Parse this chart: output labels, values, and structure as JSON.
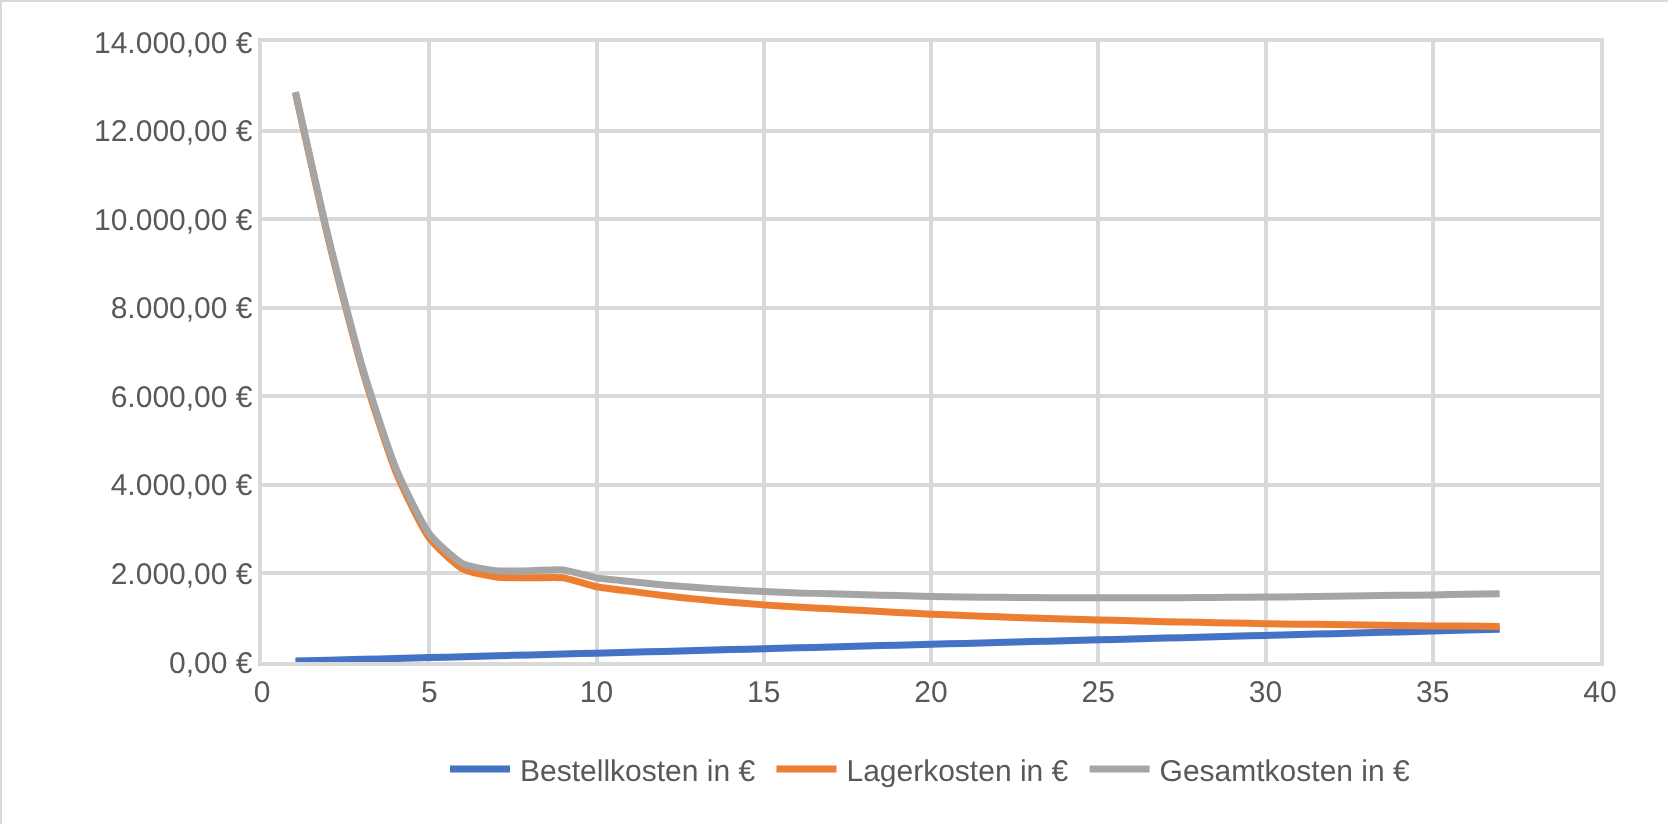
{
  "chart_data": {
    "type": "line",
    "x": [
      1,
      2,
      3,
      4,
      5,
      6,
      7,
      8,
      9,
      10,
      11,
      12,
      13,
      14,
      15,
      16,
      17,
      18,
      19,
      20,
      21,
      22,
      23,
      24,
      25,
      26,
      27,
      28,
      29,
      30,
      31,
      32,
      33,
      34,
      35,
      36,
      37
    ],
    "series": [
      {
        "name": "Bestellkosten in €",
        "color": "#4472c4",
        "values": [
          20,
          40,
          60,
          80,
          100,
          120,
          140,
          160,
          180,
          200,
          220,
          240,
          260,
          280,
          300,
          320,
          340,
          360,
          380,
          400,
          420,
          440,
          460,
          480,
          500,
          520,
          540,
          560,
          580,
          600,
          620,
          640,
          660,
          680,
          700,
          720,
          740
        ]
      },
      {
        "name": "Lagerkosten in €",
        "color": "#ed7d31",
        "values": [
          12850,
          9500,
          6600,
          4300,
          2800,
          2100,
          1920,
          1900,
          1900,
          1700,
          1600,
          1500,
          1420,
          1350,
          1290,
          1240,
          1200,
          1160,
          1120,
          1080,
          1050,
          1020,
          995,
          970,
          950,
          930,
          910,
          895,
          880,
          865,
          855,
          845,
          835,
          825,
          815,
          810,
          800
        ]
      },
      {
        "name": "Gesamtkosten in €",
        "color": "#a5a5a5",
        "values": [
          12870,
          9540,
          6660,
          4380,
          2900,
          2220,
          2060,
          2060,
          2080,
          1900,
          1820,
          1740,
          1680,
          1630,
          1590,
          1560,
          1540,
          1520,
          1500,
          1480,
          1470,
          1460,
          1455,
          1450,
          1450,
          1450,
          1450,
          1455,
          1460,
          1465,
          1475,
          1485,
          1495,
          1505,
          1515,
          1530,
          1540
        ]
      }
    ],
    "xlim": [
      0,
      40
    ],
    "xticks": [
      0,
      5,
      10,
      15,
      20,
      25,
      30,
      35,
      40
    ],
    "ylim": [
      0,
      14000
    ],
    "yticks": [
      {
        "value": 0,
        "label": "0,00 €"
      },
      {
        "value": 2000,
        "label": "2.000,00 €"
      },
      {
        "value": 4000,
        "label": "4.000,00 €"
      },
      {
        "value": 6000,
        "label": "6.000,00 €"
      },
      {
        "value": 8000,
        "label": "8.000,00 €"
      },
      {
        "value": 10000,
        "label": "10.000,00 €"
      },
      {
        "value": 12000,
        "label": "12.000,00 €"
      },
      {
        "value": 14000,
        "label": "14.000,00 €"
      }
    ],
    "grid": true,
    "legend": "bottom",
    "marker": "none",
    "line_style": "solid"
  }
}
